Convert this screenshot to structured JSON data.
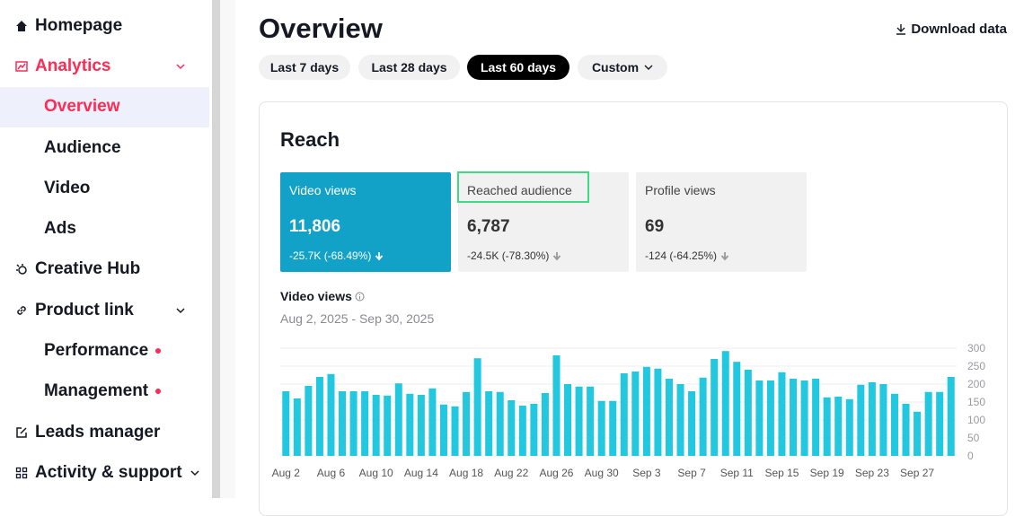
{
  "sidebar": {
    "items": [
      "Homepage",
      "Analytics",
      "Overview",
      "Audience",
      "Video",
      "Ads",
      "Creative Hub",
      "Product link",
      "Performance",
      "Management",
      "Leads manager",
      "Activity & support"
    ]
  },
  "header": {
    "title": "Overview",
    "download": "Download data"
  },
  "tabs": [
    "Last 7 days",
    "Last 28 days",
    "Last 60 days",
    "Custom"
  ],
  "reach": {
    "title": "Reach",
    "metrics": [
      {
        "label": "Video views",
        "value": "11,806",
        "change": "-25.7K (-68.49%)"
      },
      {
        "label": "Reached audience",
        "value": "6,787",
        "change": "-24.5K (-78.30%)"
      },
      {
        "label": "Profile views",
        "value": "69",
        "change": "-124 (-64.25%)"
      }
    ]
  },
  "chart_data": {
    "type": "bar",
    "title": "Video views",
    "subtitle": "Aug 2, 2025 - Sep 30, 2025",
    "color": "#22c7e0",
    "grid": true,
    "categories": [
      "Aug 2",
      null,
      null,
      null,
      "Aug 6",
      null,
      null,
      null,
      "Aug 10",
      null,
      null,
      null,
      "Aug 14",
      null,
      null,
      null,
      "Aug 18",
      null,
      null,
      null,
      "Aug 22",
      null,
      null,
      null,
      "Aug 26",
      null,
      null,
      null,
      "Aug 30",
      null,
      null,
      null,
      "Sep 3",
      null,
      null,
      null,
      "Sep 7",
      null,
      null,
      null,
      "Sep 11",
      null,
      null,
      null,
      "Sep 15",
      null,
      null,
      null,
      "Sep 19",
      null,
      null,
      null,
      "Sep 23",
      null,
      null,
      null,
      "Sep 27",
      null,
      null,
      null
    ],
    "values": [
      180,
      160,
      195,
      220,
      228,
      180,
      180,
      180,
      170,
      168,
      202,
      173,
      170,
      188,
      143,
      138,
      178,
      272,
      180,
      178,
      155,
      140,
      145,
      175,
      280,
      200,
      193,
      193,
      153,
      153,
      230,
      235,
      248,
      243,
      215,
      200,
      180,
      218,
      270,
      292,
      262,
      240,
      210,
      210,
      233,
      215,
      210,
      215,
      163,
      165,
      158,
      198,
      205,
      200,
      173,
      145,
      123,
      178,
      178,
      220
    ],
    "ylim": [
      0,
      300
    ],
    "yticks": [
      0,
      50,
      100,
      150,
      200,
      250,
      300
    ]
  }
}
